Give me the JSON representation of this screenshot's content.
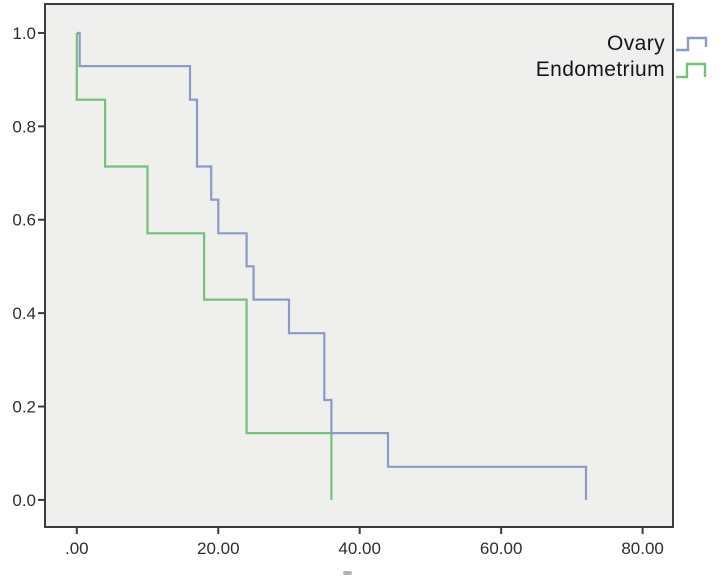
{
  "window": {
    "background": "#ffffff"
  },
  "chart_data": {
    "type": "line",
    "subtype": "kaplan_meier_step_survival",
    "title": "",
    "xlabel": "",
    "ylabel": "",
    "grid": false,
    "plot_background": "#efefed",
    "axis_color": "#3b3b3b",
    "tick_label_color": "#2e2e2e",
    "x_tick_labels": [
      ".00",
      "20.00",
      "40.00",
      "60.00",
      "80.00"
    ],
    "x_tick_values": [
      0,
      20,
      40,
      60,
      80
    ],
    "y_tick_labels": [
      "0.0",
      "0.2",
      "0.4",
      "0.6",
      "0.8",
      "1.0"
    ],
    "y_tick_values": [
      0,
      0.2,
      0.4,
      0.6,
      0.8,
      1.0
    ],
    "xlim": [
      -4.5,
      84.3
    ],
    "ylim": [
      -0.058,
      1.062
    ],
    "legend_position": "top-right",
    "series": [
      {
        "name": "Ovary",
        "color": "#8b9ac9",
        "points": [
          [
            0,
            1.0
          ],
          [
            0.4,
            1.0
          ],
          [
            0.4,
            0.929
          ],
          [
            16,
            0.929
          ],
          [
            16,
            0.857
          ],
          [
            17,
            0.857
          ],
          [
            17,
            0.714
          ],
          [
            19,
            0.714
          ],
          [
            19,
            0.643
          ],
          [
            20,
            0.643
          ],
          [
            20,
            0.571
          ],
          [
            24,
            0.571
          ],
          [
            24,
            0.5
          ],
          [
            25,
            0.5
          ],
          [
            25,
            0.429
          ],
          [
            30,
            0.429
          ],
          [
            30,
            0.357
          ],
          [
            35,
            0.357
          ],
          [
            35,
            0.214
          ],
          [
            36,
            0.214
          ],
          [
            36,
            0.143
          ],
          [
            44,
            0.143
          ],
          [
            44,
            0.071
          ],
          [
            72,
            0.071
          ],
          [
            72,
            0.0
          ]
        ]
      },
      {
        "name": "Endometrium",
        "color": "#73c377",
        "points": [
          [
            0,
            1.0
          ],
          [
            0,
            0.857
          ],
          [
            4,
            0.857
          ],
          [
            4,
            0.714
          ],
          [
            10,
            0.714
          ],
          [
            10,
            0.571
          ],
          [
            18,
            0.571
          ],
          [
            18,
            0.429
          ],
          [
            24,
            0.429
          ],
          [
            24,
            0.143
          ],
          [
            36,
            0.143
          ],
          [
            36,
            0.0
          ]
        ]
      }
    ]
  }
}
